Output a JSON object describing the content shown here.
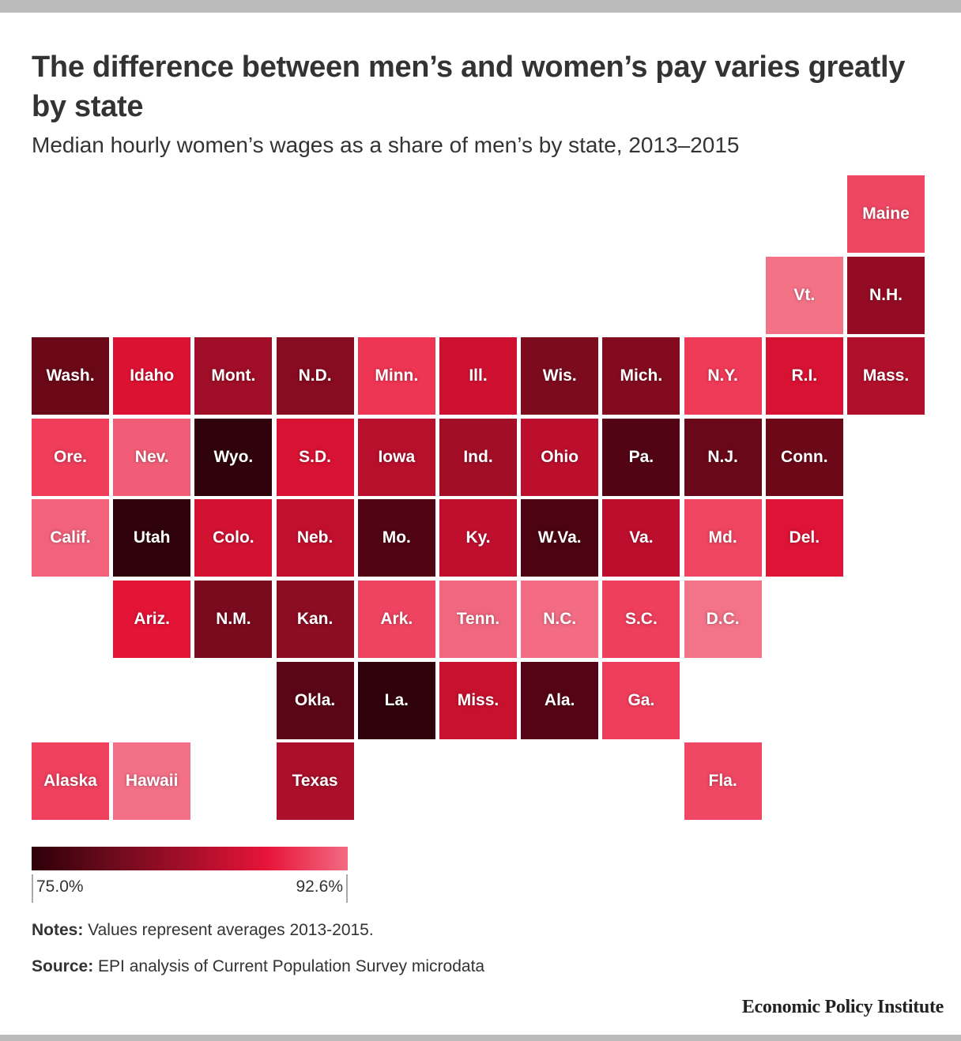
{
  "title": "The difference between men’s and women’s pay varies greatly by state",
  "subtitle": "Median hourly women’s wages as a share of men’s by state, 2013–2015",
  "legend": {
    "min_label": "75.0%",
    "max_label": "92.6%",
    "colors": [
      "#2e0009",
      "#6b0a1c",
      "#a80e2a",
      "#e8153a",
      "#f26b82"
    ]
  },
  "notes": {
    "label": "Notes:",
    "text": " Values represent averages 2013-2015."
  },
  "source": {
    "label": "Source:",
    "text": " EPI analysis of Current Population Survey microdata"
  },
  "brand": "Economic Policy Institute",
  "chart_data": {
    "type": "heatmap",
    "title": "The difference between men’s and women’s pay varies greatly by state",
    "subtitle": "Median hourly women’s wages as a share of men’s by state, 2013–2015",
    "value_unit": "percent",
    "scale_range": [
      75.0,
      92.6
    ],
    "tiles": [
      {
        "label": "Maine",
        "col": 10,
        "row": 0,
        "value": 89.0,
        "color": "#ef4763"
      },
      {
        "label": "Vt.",
        "col": 9,
        "row": 1,
        "value": 91.5,
        "color": "#f37286"
      },
      {
        "label": "N.H.",
        "col": 10,
        "row": 1,
        "value": 79.8,
        "color": "#940c24"
      },
      {
        "label": "Wash.",
        "col": 0,
        "row": 2,
        "value": 77.8,
        "color": "#6b0818"
      },
      {
        "label": "Idaho",
        "col": 1,
        "row": 2,
        "value": 85.0,
        "color": "#dc1233"
      },
      {
        "label": "Mont.",
        "col": 2,
        "row": 2,
        "value": 80.5,
        "color": "#a00e27"
      },
      {
        "label": "N.D.",
        "col": 3,
        "row": 2,
        "value": 79.2,
        "color": "#870b21"
      },
      {
        "label": "Minn.",
        "col": 4,
        "row": 2,
        "value": 88.5,
        "color": "#ee3553"
      },
      {
        "label": "Ill.",
        "col": 5,
        "row": 2,
        "value": 84.0,
        "color": "#cf1131"
      },
      {
        "label": "Wis.",
        "col": 6,
        "row": 2,
        "value": 78.6,
        "color": "#7c0b1e"
      },
      {
        "label": "Mich.",
        "col": 7,
        "row": 2,
        "value": 78.9,
        "color": "#830b20"
      },
      {
        "label": "N.Y.",
        "col": 8,
        "row": 2,
        "value": 88.6,
        "color": "#ef3a58"
      },
      {
        "label": "R.I.",
        "col": 9,
        "row": 2,
        "value": 84.7,
        "color": "#d81233"
      },
      {
        "label": "Mass.",
        "col": 10,
        "row": 2,
        "value": 81.6,
        "color": "#b0102b"
      },
      {
        "label": "Ore.",
        "col": 0,
        "row": 3,
        "value": 88.5,
        "color": "#ef3d5a"
      },
      {
        "label": "Nev.",
        "col": 1,
        "row": 3,
        "value": 90.9,
        "color": "#f15d76"
      },
      {
        "label": "Wyo.",
        "col": 2,
        "row": 3,
        "value": 75.0,
        "color": "#30020c"
      },
      {
        "label": "S.D.",
        "col": 3,
        "row": 3,
        "value": 84.7,
        "color": "#d81233"
      },
      {
        "label": "Iowa",
        "col": 4,
        "row": 3,
        "value": 82.2,
        "color": "#b70f2c"
      },
      {
        "label": "Ind.",
        "col": 5,
        "row": 3,
        "value": 80.9,
        "color": "#a20e26"
      },
      {
        "label": "Ohio",
        "col": 6,
        "row": 3,
        "value": 82.4,
        "color": "#bb0f2d"
      },
      {
        "label": "Pa.",
        "col": 7,
        "row": 3,
        "value": 76.6,
        "color": "#520414"
      },
      {
        "label": "N.J.",
        "col": 8,
        "row": 3,
        "value": 77.6,
        "color": "#690818"
      },
      {
        "label": "Conn.",
        "col": 9,
        "row": 3,
        "value": 77.6,
        "color": "#6d0819"
      },
      {
        "label": "Calif.",
        "col": 0,
        "row": 4,
        "value": 91.2,
        "color": "#f2637b"
      },
      {
        "label": "Utah",
        "col": 1,
        "row": 4,
        "value": 75.0,
        "color": "#30020c"
      },
      {
        "label": "Colo.",
        "col": 2,
        "row": 4,
        "value": 84.4,
        "color": "#d31232"
      },
      {
        "label": "Neb.",
        "col": 3,
        "row": 4,
        "value": 82.9,
        "color": "#c10f2e"
      },
      {
        "label": "Mo.",
        "col": 4,
        "row": 4,
        "value": 76.5,
        "color": "#500414"
      },
      {
        "label": "Ky.",
        "col": 5,
        "row": 4,
        "value": 82.9,
        "color": "#c00f2e"
      },
      {
        "label": "W.Va.",
        "col": 6,
        "row": 4,
        "value": 76.2,
        "color": "#4c0412"
      },
      {
        "label": "Va.",
        "col": 7,
        "row": 4,
        "value": 82.6,
        "color": "#bd0f2d"
      },
      {
        "label": "Md.",
        "col": 8,
        "row": 4,
        "value": 89.0,
        "color": "#ef4562"
      },
      {
        "label": "Del.",
        "col": 9,
        "row": 4,
        "value": 85.2,
        "color": "#de1335"
      },
      {
        "label": "Ariz.",
        "col": 1,
        "row": 5,
        "value": 85.9,
        "color": "#e31436"
      },
      {
        "label": "N.M.",
        "col": 2,
        "row": 5,
        "value": 78.5,
        "color": "#7a0a1d"
      },
      {
        "label": "Kan.",
        "col": 3,
        "row": 5,
        "value": 79.5,
        "color": "#8c0c22"
      },
      {
        "label": "Ark.",
        "col": 4,
        "row": 5,
        "value": 89.0,
        "color": "#ef4461"
      },
      {
        "label": "Tenn.",
        "col": 5,
        "row": 5,
        "value": 91.2,
        "color": "#f26780"
      },
      {
        "label": "N.C.",
        "col": 6,
        "row": 5,
        "value": 91.6,
        "color": "#f36c84"
      },
      {
        "label": "S.C.",
        "col": 7,
        "row": 5,
        "value": 88.8,
        "color": "#ee3f5d"
      },
      {
        "label": "D.C.",
        "col": 8,
        "row": 5,
        "value": 92.0,
        "color": "#f37388"
      },
      {
        "label": "Okla.",
        "col": 3,
        "row": 6,
        "value": 77.0,
        "color": "#5a0616"
      },
      {
        "label": "La.",
        "col": 4,
        "row": 6,
        "value": 75.0,
        "color": "#30020c"
      },
      {
        "label": "Miss.",
        "col": 5,
        "row": 6,
        "value": 83.6,
        "color": "#c8102f"
      },
      {
        "label": "Ala.",
        "col": 6,
        "row": 6,
        "value": 76.6,
        "color": "#550415"
      },
      {
        "label": "Ga.",
        "col": 7,
        "row": 6,
        "value": 88.8,
        "color": "#ef3e5b"
      },
      {
        "label": "Alaska",
        "col": 0,
        "row": 7,
        "value": 88.9,
        "color": "#ef405e"
      },
      {
        "label": "Hawaii",
        "col": 1,
        "row": 7,
        "value": 91.8,
        "color": "#f37087"
      },
      {
        "label": "Texas",
        "col": 3,
        "row": 7,
        "value": 81.5,
        "color": "#ab0f2a"
      },
      {
        "label": "Fla.",
        "col": 8,
        "row": 7,
        "value": 89.2,
        "color": "#ef4764"
      }
    ]
  }
}
